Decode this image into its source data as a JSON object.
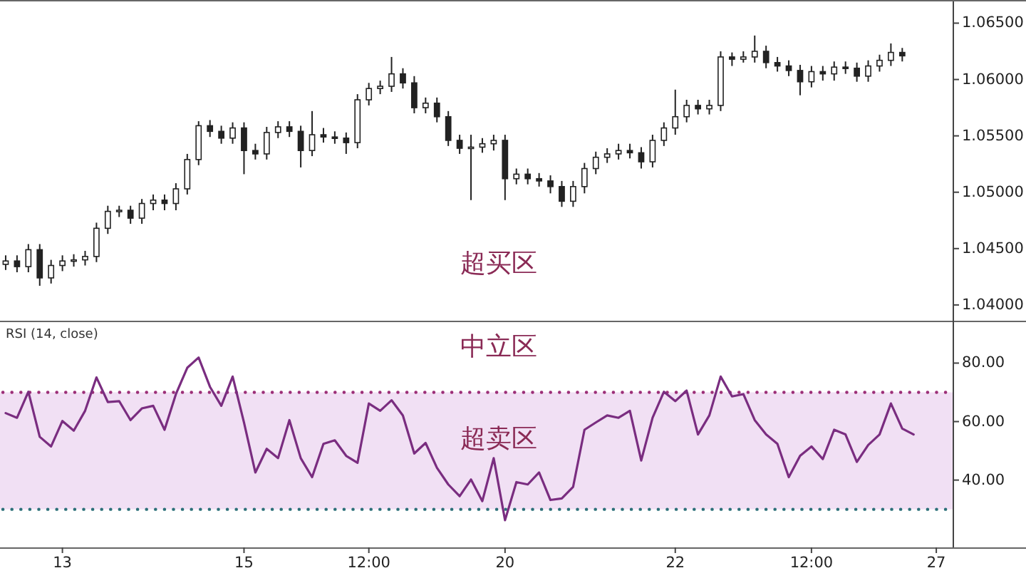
{
  "chart_data": [
    {
      "type": "candlestick",
      "color": "#222222",
      "ylim": [
        1.0386,
        1.0668
      ],
      "tick_labels": "y",
      "categories": [
        null,
        null,
        null,
        null,
        null,
        null,
        null,
        null,
        null,
        null,
        null,
        null,
        null,
        null,
        null,
        null,
        null,
        null,
        null,
        null,
        null,
        null,
        null,
        null,
        null,
        null,
        null,
        null,
        null,
        null,
        null,
        null,
        null,
        null,
        null,
        null,
        null,
        null,
        null,
        null,
        null,
        null,
        null,
        null,
        null,
        null,
        null,
        null,
        null,
        null,
        null,
        null,
        null,
        null,
        null,
        null,
        null,
        null,
        null,
        null,
        null,
        null,
        null,
        null,
        null,
        null,
        null,
        null,
        null,
        null,
        null,
        null,
        null,
        null,
        null,
        null,
        null,
        null,
        null,
        null,
        null,
        null,
        null,
        null
      ],
      "yticks": [
        {
          "value": 1.04,
          "label": "1.04000"
        },
        {
          "value": 1.045,
          "label": "1.04500"
        },
        {
          "value": 1.05,
          "label": "1.05000"
        },
        {
          "value": 1.055,
          "label": "1.05500"
        },
        {
          "value": 1.06,
          "label": "1.06000"
        },
        {
          "value": 1.065,
          "label": "1.06500"
        }
      ],
      "annotations": [
        "超买区"
      ],
      "ohlc": [
        [
          1.0436,
          1.0444,
          1.0431,
          1.0439
        ],
        [
          1.0439,
          1.0444,
          1.0429,
          1.0434
        ],
        [
          1.0434,
          1.0454,
          1.0429,
          1.0449
        ],
        [
          1.0449,
          1.0454,
          1.0417,
          1.0424
        ],
        [
          1.0424,
          1.044,
          1.0419,
          1.0435
        ],
        [
          1.0435,
          1.0444,
          1.043,
          1.0439
        ],
        [
          1.0439,
          1.0445,
          1.0434,
          1.044
        ],
        [
          1.044,
          1.0448,
          1.0435,
          1.0443
        ],
        [
          1.0443,
          1.0473,
          1.0438,
          1.0468
        ],
        [
          1.0468,
          1.0488,
          1.0463,
          1.0483
        ],
        [
          1.0483,
          1.0488,
          1.0478,
          1.0484
        ],
        [
          1.0484,
          1.0488,
          1.0472,
          1.0477
        ],
        [
          1.0477,
          1.0494,
          1.0472,
          1.049
        ],
        [
          1.049,
          1.0498,
          1.0484,
          1.0493
        ],
        [
          1.0493,
          1.0498,
          1.0484,
          1.049
        ],
        [
          1.049,
          1.0508,
          1.0484,
          1.0503
        ],
        [
          1.0503,
          1.0534,
          1.0498,
          1.0529
        ],
        [
          1.0529,
          1.0563,
          1.0524,
          1.0559
        ],
        [
          1.0559,
          1.0564,
          1.0549,
          1.0554
        ],
        [
          1.0554,
          1.0559,
          1.0543,
          1.0548
        ],
        [
          1.0548,
          1.0562,
          1.0543,
          1.0557
        ],
        [
          1.0557,
          1.0562,
          1.0516,
          1.0537
        ],
        [
          1.0537,
          1.0543,
          1.0529,
          1.0534
        ],
        [
          1.0534,
          1.0558,
          1.0529,
          1.0553
        ],
        [
          1.0553,
          1.0563,
          1.0548,
          1.0558
        ],
        [
          1.0558,
          1.0563,
          1.0549,
          1.0554
        ],
        [
          1.0554,
          1.0559,
          1.0522,
          1.0537
        ],
        [
          1.0537,
          1.0572,
          1.0532,
          1.0551
        ],
        [
          1.0551,
          1.0557,
          1.0544,
          1.0549
        ],
        [
          1.0549,
          1.0554,
          1.0543,
          1.0548
        ],
        [
          1.0548,
          1.0553,
          1.0534,
          1.0544
        ],
        [
          1.0544,
          1.0587,
          1.0539,
          1.0582
        ],
        [
          1.0582,
          1.0597,
          1.0577,
          1.0592
        ],
        [
          1.0592,
          1.0599,
          1.0587,
          1.0594
        ],
        [
          1.0594,
          1.062,
          1.0589,
          1.0605
        ],
        [
          1.0605,
          1.061,
          1.0592,
          1.0597
        ],
        [
          1.0597,
          1.0603,
          1.057,
          1.0575
        ],
        [
          1.0575,
          1.0584,
          1.057,
          1.0579
        ],
        [
          1.0579,
          1.0584,
          1.0562,
          1.0567
        ],
        [
          1.0567,
          1.0572,
          1.0541,
          1.0546
        ],
        [
          1.0546,
          1.0551,
          1.0534,
          1.0539
        ],
        [
          1.0539,
          1.0551,
          1.0493,
          1.054
        ],
        [
          1.054,
          1.0548,
          1.0535,
          1.0543
        ],
        [
          1.0543,
          1.0551,
          1.0537,
          1.0546
        ],
        [
          1.0546,
          1.0551,
          1.0493,
          1.0512
        ],
        [
          1.0512,
          1.0521,
          1.0507,
          1.0516
        ],
        [
          1.0516,
          1.0521,
          1.0507,
          1.0512
        ],
        [
          1.0512,
          1.0517,
          1.0505,
          1.051
        ],
        [
          1.051,
          1.0515,
          1.0499,
          1.0505
        ],
        [
          1.0505,
          1.051,
          1.0487,
          1.0492
        ],
        [
          1.0492,
          1.051,
          1.0487,
          1.0505
        ],
        [
          1.0505,
          1.0526,
          1.0499,
          1.0521
        ],
        [
          1.0521,
          1.0536,
          1.0516,
          1.0531
        ],
        [
          1.0531,
          1.0539,
          1.0526,
          1.0534
        ],
        [
          1.0534,
          1.0543,
          1.0529,
          1.0537
        ],
        [
          1.0537,
          1.0543,
          1.053,
          1.0535
        ],
        [
          1.0535,
          1.054,
          1.0521,
          1.0527
        ],
        [
          1.0527,
          1.0551,
          1.0522,
          1.0546
        ],
        [
          1.0546,
          1.0562,
          1.0541,
          1.0557
        ],
        [
          1.0557,
          1.0591,
          1.0551,
          1.0567
        ],
        [
          1.0567,
          1.0582,
          1.0562,
          1.0577
        ],
        [
          1.0577,
          1.0582,
          1.0569,
          1.0574
        ],
        [
          1.0574,
          1.0582,
          1.0569,
          1.0577
        ],
        [
          1.0577,
          1.0625,
          1.0572,
          1.062
        ],
        [
          1.062,
          1.0624,
          1.0612,
          1.0618
        ],
        [
          1.0618,
          1.0625,
          1.0615,
          1.062
        ],
        [
          1.062,
          1.0639,
          1.0615,
          1.0625
        ],
        [
          1.0625,
          1.063,
          1.061,
          1.0615
        ],
        [
          1.0615,
          1.062,
          1.0607,
          1.0612
        ],
        [
          1.0612,
          1.0617,
          1.0603,
          1.0608
        ],
        [
          1.0608,
          1.0613,
          1.0586,
          1.0598
        ],
        [
          1.0598,
          1.0612,
          1.0593,
          1.0607
        ],
        [
          1.0607,
          1.0612,
          1.0599,
          1.0605
        ],
        [
          1.0605,
          1.0616,
          1.0599,
          1.0611
        ],
        [
          1.0611,
          1.0616,
          1.0605,
          1.061
        ],
        [
          1.061,
          1.0615,
          1.0598,
          1.0603
        ],
        [
          1.0603,
          1.0617,
          1.0598,
          1.0612
        ],
        [
          1.0612,
          1.0622,
          1.0607,
          1.0617
        ],
        [
          1.0617,
          1.0632,
          1.0612,
          1.0624
        ],
        [
          1.0624,
          1.0628,
          1.0616,
          1.0621
        ],
        null,
        null,
        null,
        null
      ]
    },
    {
      "type": "line",
      "title": "RSI (14, close)",
      "ylim": [
        17,
        94
      ],
      "categories": [
        null,
        null,
        null,
        null,
        null,
        "13",
        null,
        null,
        null,
        null,
        null,
        null,
        null,
        null,
        null,
        null,
        null,
        null,
        null,
        null,
        null,
        "15",
        null,
        null,
        null,
        null,
        null,
        null,
        null,
        null,
        null,
        null,
        "12:00",
        null,
        null,
        null,
        null,
        null,
        null,
        null,
        null,
        null,
        null,
        null,
        "20",
        null,
        null,
        null,
        null,
        null,
        null,
        null,
        null,
        null,
        null,
        null,
        null,
        null,
        null,
        "22",
        null,
        null,
        null,
        null,
        null,
        null,
        null,
        null,
        null,
        null,
        null,
        "12:00",
        null,
        null,
        null,
        null,
        null,
        null,
        null,
        null,
        null,
        null,
        "27",
        null
      ],
      "yticks": [
        {
          "value": 40,
          "label": "40.00"
        },
        {
          "value": 60,
          "label": "60.00"
        },
        {
          "value": 80,
          "label": "80.00"
        }
      ],
      "bands": [
        {
          "axis": "y",
          "from": 30,
          "to": 70,
          "color": "#f1e0f4"
        }
      ],
      "ref_lines": [
        {
          "axis": "y",
          "value": 70,
          "color": "#9c2f78",
          "line_style": "dotted"
        },
        {
          "axis": "y",
          "value": 30,
          "color": "#2b6f78",
          "line_style": "dotted"
        }
      ],
      "annotations": [
        "中立区",
        "超卖区"
      ],
      "series": [
        {
          "color": "#7a2d80",
          "values": [
            62.9,
            61.3,
            70.2,
            54.8,
            51.5,
            60.2,
            56.9,
            63.7,
            75.1,
            66.7,
            67.0,
            60.5,
            64.5,
            65.4,
            57.2,
            69.4,
            78.4,
            81.9,
            71.9,
            65.4,
            75.4,
            59.7,
            42.6,
            50.7,
            47.5,
            60.5,
            47.5,
            41.0,
            52.4,
            53.6,
            48.3,
            45.9,
            66.2,
            63.7,
            67.3,
            62.1,
            49.1,
            52.7,
            44.2,
            38.5,
            34.5,
            40.2,
            32.8,
            47.5,
            26.3,
            39.3,
            38.5,
            42.6,
            33.2,
            33.7,
            37.7,
            57.2,
            59.7,
            62.1,
            61.3,
            63.7,
            46.7,
            61.3,
            70.2,
            67.0,
            70.6,
            55.6,
            62.1,
            75.4,
            68.6,
            69.4,
            60.5,
            55.6,
            52.4,
            41.0,
            48.3,
            51.5,
            47.2,
            57.2,
            55.6,
            46.2,
            52.0,
            55.6,
            66.2,
            57.6,
            55.6,
            null,
            null,
            null
          ]
        }
      ]
    }
  ]
}
